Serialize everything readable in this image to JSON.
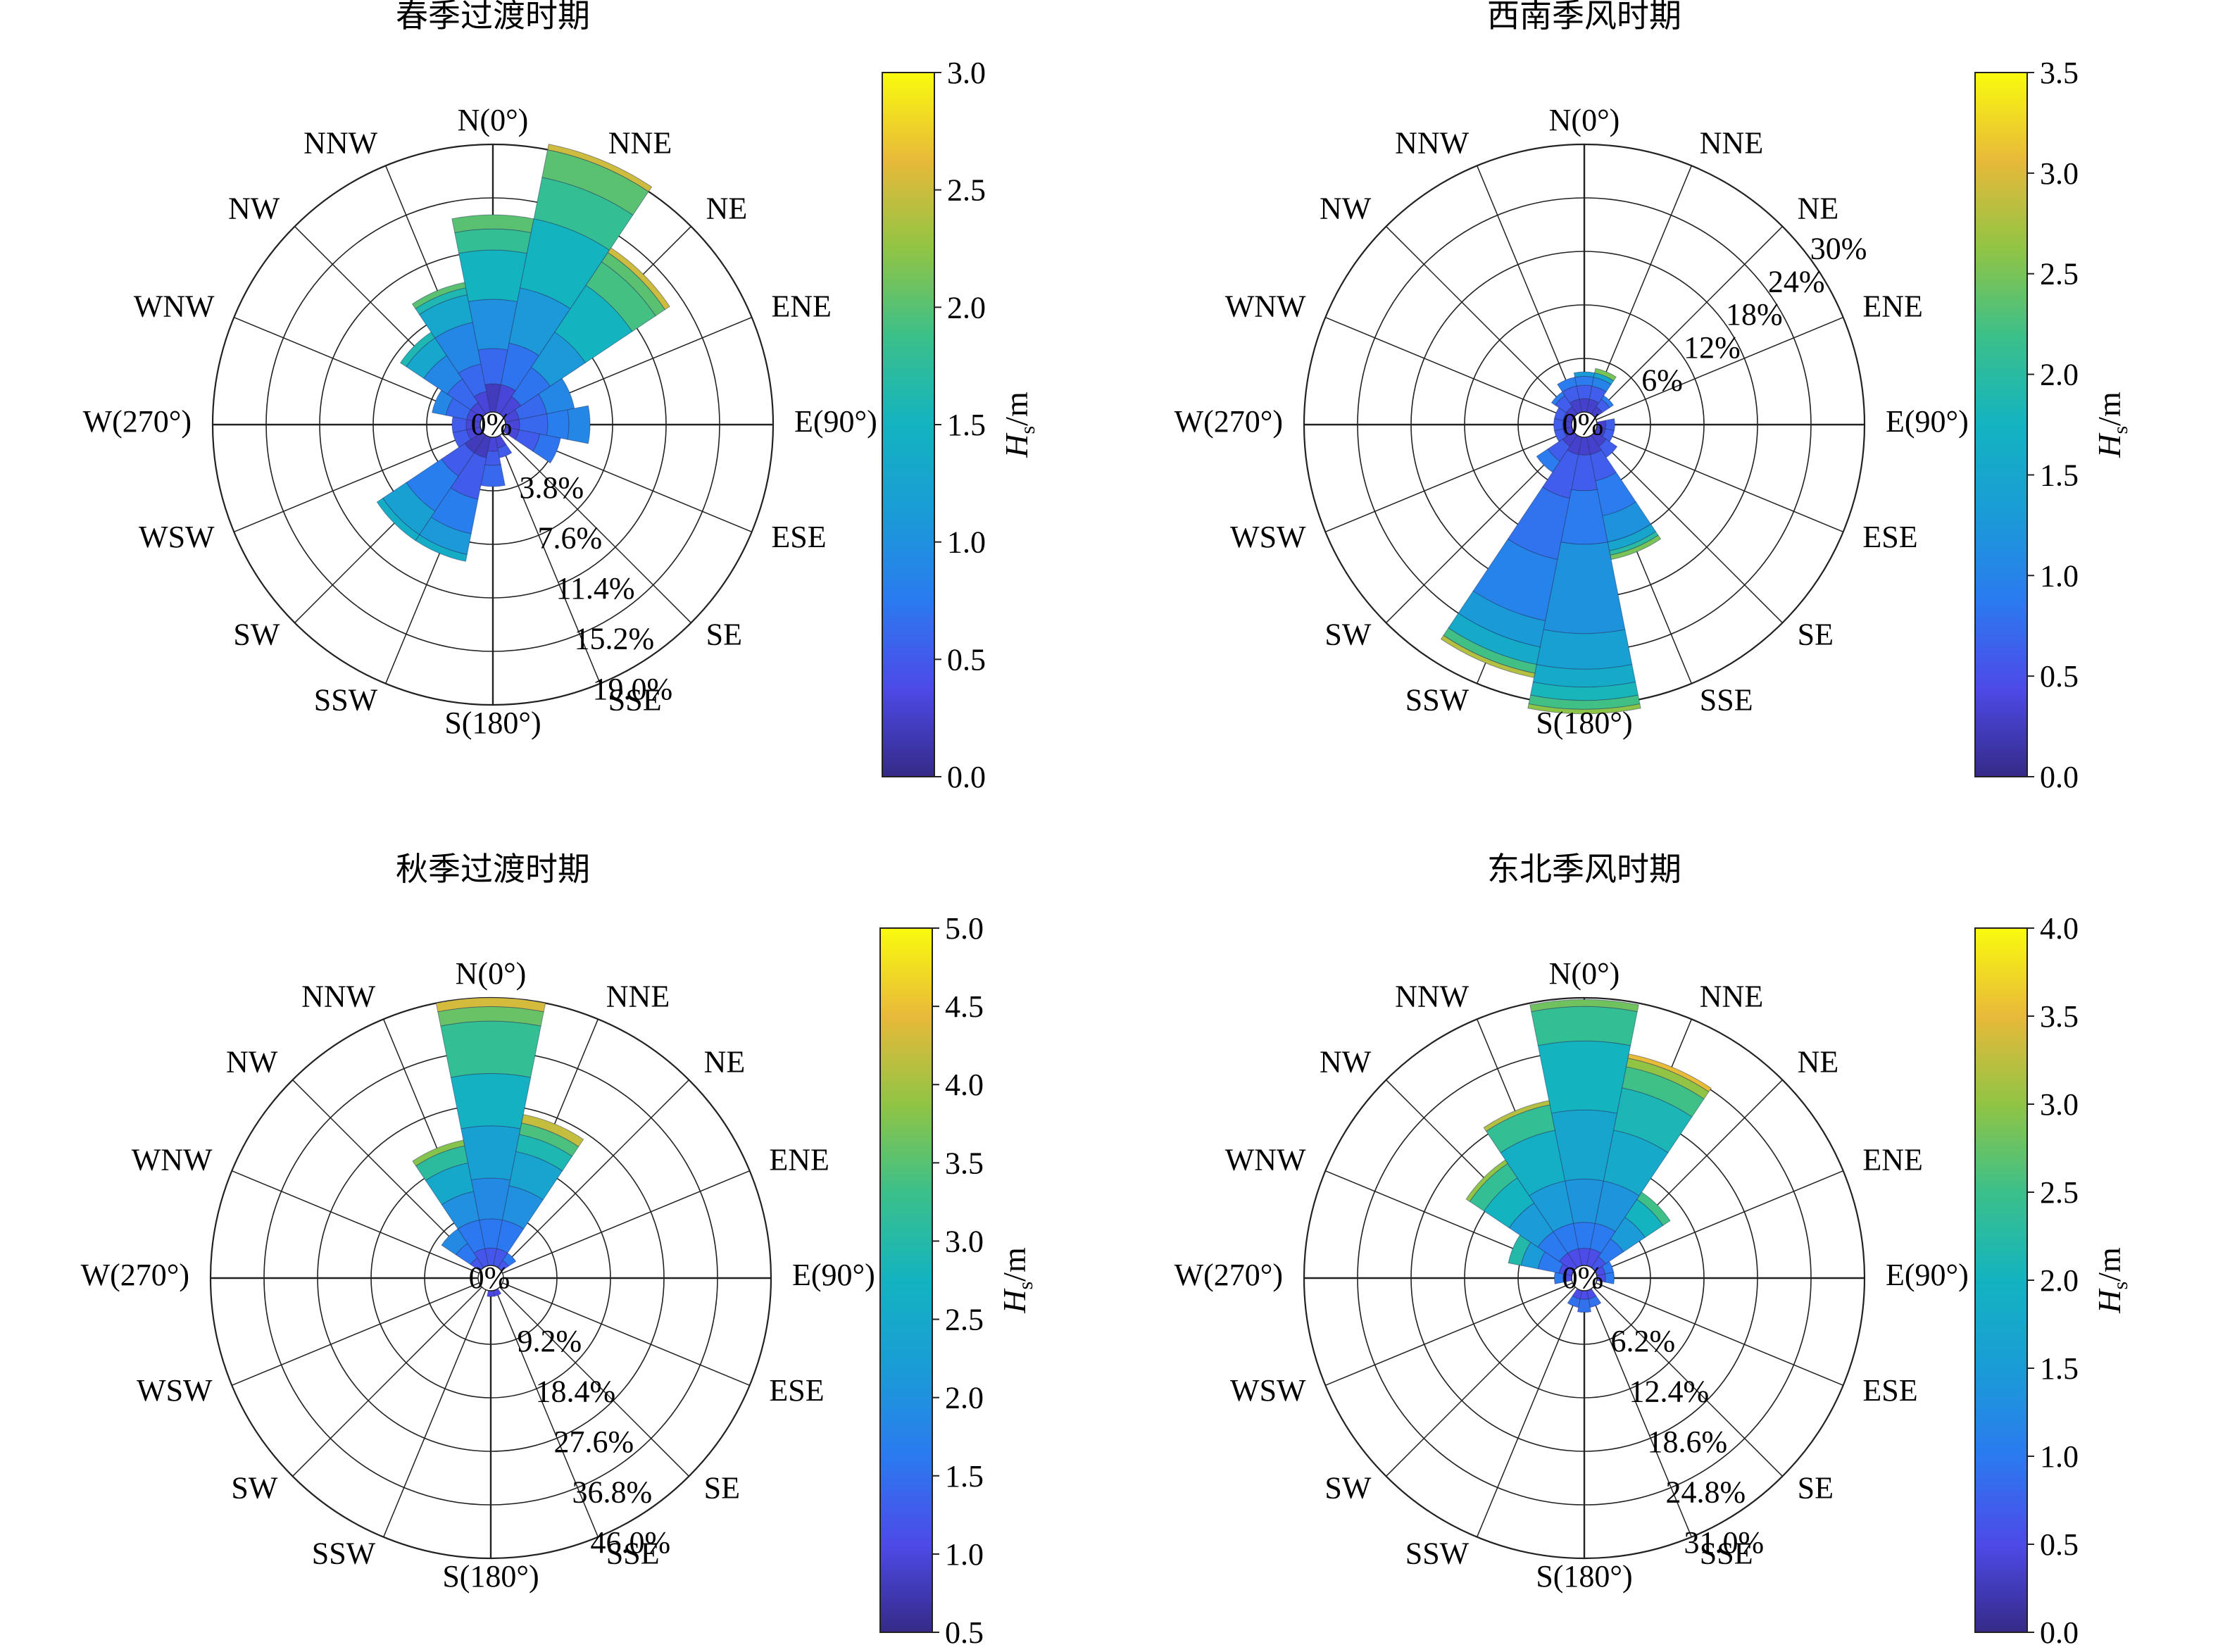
{
  "directions": [
    "N(0°)",
    "NNE",
    "NE",
    "ENE",
    "E(90°)",
    "ESE",
    "SE",
    "SSE",
    "S(180°)",
    "SSW",
    "SW",
    "WSW",
    "W(270°)",
    "WNW",
    "NW",
    "NNW"
  ],
  "colorbar_label": "Hs/m",
  "colorbar_label_main": "H",
  "colorbar_label_sub": "s",
  "colorbar_label_unit": "/m",
  "chart_data": [
    {
      "type": "polar-bar",
      "title": "春季过渡时期",
      "r_max": 19.0,
      "r_ticks": [
        "3.8%",
        "7.6%",
        "11.4%",
        "15.2%",
        "19.0%"
      ],
      "r_tick_values": [
        3.8,
        7.6,
        11.4,
        15.2,
        19.0
      ],
      "center_label": "0%",
      "rlabel_angle_deg": 160,
      "colorbar": {
        "min": 0.0,
        "max": 3.0,
        "ticks": [
          "0.0",
          "0.5",
          "1.0",
          "1.5",
          "2.0",
          "2.5",
          "3.0"
        ]
      },
      "sectors": [
        {
          "direction": "N(0°)",
          "bins": [
            [
              2.0,
              0.2
            ],
            [
              4.5,
              0.6
            ],
            [
              8.0,
              1.0
            ],
            [
              11.5,
              1.5
            ],
            [
              13.0,
              1.8
            ],
            [
              14.0,
              2.0
            ]
          ]
        },
        {
          "direction": "NNE",
          "bins": [
            [
              2.0,
              0.3
            ],
            [
              5.0,
              0.7
            ],
            [
              9.0,
              1.1
            ],
            [
              14.0,
              1.5
            ],
            [
              17.0,
              1.8
            ],
            [
              19.0,
              2.0
            ],
            [
              19.4,
              2.5
            ]
          ]
        },
        {
          "direction": "NE",
          "bins": [
            [
              1.5,
              0.3
            ],
            [
              4.0,
              0.7
            ],
            [
              7.0,
              1.1
            ],
            [
              11.0,
              1.5
            ],
            [
              13.0,
              1.9
            ],
            [
              13.8,
              2.0
            ],
            [
              14.2,
              2.5
            ]
          ]
        },
        {
          "direction": "ENE",
          "bins": [
            [
              1.0,
              0.3
            ],
            [
              3.0,
              0.6
            ],
            [
              5.0,
              0.9
            ]
          ]
        },
        {
          "direction": "E(90°)",
          "bins": [
            [
              1.0,
              0.3
            ],
            [
              3.0,
              0.6
            ],
            [
              4.5,
              0.8
            ],
            [
              6.0,
              0.9
            ]
          ]
        },
        {
          "direction": "ESE",
          "bins": [
            [
              1.0,
              0.3
            ],
            [
              2.5,
              0.5
            ],
            [
              4.0,
              0.7
            ]
          ]
        },
        {
          "direction": "SSE",
          "bins": [
            [
              0.8,
              0.3
            ],
            [
              1.5,
              0.5
            ]
          ]
        },
        {
          "direction": "S(180°)",
          "bins": [
            [
              1.0,
              0.3
            ],
            [
              2.0,
              0.5
            ],
            [
              3.5,
              0.6
            ]
          ]
        },
        {
          "direction": "SSW",
          "bins": [
            [
              1.5,
              0.2
            ],
            [
              4.5,
              0.5
            ],
            [
              7.0,
              0.8
            ],
            [
              8.5,
              1.1
            ],
            [
              9.0,
              1.4
            ]
          ]
        },
        {
          "direction": "SW",
          "bins": [
            [
              1.5,
              0.2
            ],
            [
              3.5,
              0.5
            ],
            [
              6.5,
              0.8
            ],
            [
              8.5,
              1.2
            ],
            [
              9.0,
              1.4
            ]
          ]
        },
        {
          "direction": "WSW",
          "bins": [
            [
              1.0,
              0.3
            ],
            [
              2.0,
              0.5
            ]
          ]
        },
        {
          "direction": "W(270°)",
          "bins": [
            [
              1.0,
              0.3
            ],
            [
              2.0,
              0.5
            ]
          ]
        },
        {
          "direction": "WNW",
          "bins": [
            [
              1.0,
              0.3
            ],
            [
              2.5,
              0.6
            ],
            [
              3.5,
              0.9
            ]
          ]
        },
        {
          "direction": "NW",
          "bins": [
            [
              1.0,
              0.3
            ],
            [
              3.0,
              0.6
            ],
            [
              5.0,
              0.9
            ],
            [
              6.5,
              1.3
            ],
            [
              7.0,
              1.6
            ]
          ]
        },
        {
          "direction": "NNW",
          "bins": [
            [
              1.5,
              0.3
            ],
            [
              3.5,
              0.6
            ],
            [
              6.5,
              0.9
            ],
            [
              8.5,
              1.3
            ],
            [
              9.0,
              1.6
            ],
            [
              9.4,
              2.0
            ]
          ]
        }
      ]
    },
    {
      "type": "polar-bar",
      "title": "西南季风时期",
      "r_max": 30.0,
      "r_ticks": [
        "6%",
        "12%",
        "18%",
        "24%",
        "30%"
      ],
      "r_tick_values": [
        6,
        12,
        18,
        24,
        30
      ],
      "center_label": "0%",
      "rlabel_angle_deg": 52,
      "colorbar": {
        "min": 0.0,
        "max": 3.5,
        "ticks": [
          "0.0",
          "0.5",
          "1.0",
          "1.5",
          "2.0",
          "2.5",
          "3.0",
          "3.5"
        ]
      },
      "sectors": [
        {
          "direction": "N(0°)",
          "bins": [
            [
              1.5,
              0.3
            ],
            [
              3.0,
              0.6
            ],
            [
              4.0,
              0.9
            ],
            [
              4.5,
              1.3
            ]
          ]
        },
        {
          "direction": "NNE",
          "bins": [
            [
              1.5,
              0.3
            ],
            [
              3.0,
              0.6
            ],
            [
              4.0,
              1.0
            ],
            [
              4.5,
              1.5
            ],
            [
              5.0,
              2.5
            ]
          ]
        },
        {
          "direction": "NE",
          "bins": [
            [
              1.0,
              0.3
            ],
            [
              2.0,
              0.6
            ],
            [
              2.5,
              0.9
            ]
          ]
        },
        {
          "direction": "E(90°)",
          "bins": [
            [
              1.0,
              0.3
            ],
            [
              2.0,
              0.6
            ]
          ]
        },
        {
          "direction": "ESE",
          "bins": [
            [
              1.0,
              0.3
            ],
            [
              2.0,
              0.6
            ]
          ]
        },
        {
          "direction": "SE",
          "bins": [
            [
              1.5,
              0.3
            ],
            [
              3.0,
              0.6
            ]
          ]
        },
        {
          "direction": "SSE",
          "bins": [
            [
              2.0,
              0.3
            ],
            [
              5.0,
              0.6
            ],
            [
              9.0,
              0.9
            ],
            [
              12.0,
              1.2
            ],
            [
              13.0,
              1.5
            ],
            [
              13.5,
              2.0
            ],
            [
              14.0,
              2.5
            ]
          ]
        },
        {
          "direction": "S(180°)",
          "bins": [
            [
              2.0,
              0.3
            ],
            [
              6.0,
              0.6
            ],
            [
              12.0,
              0.9
            ],
            [
              22.0,
              1.2
            ],
            [
              26.0,
              1.4
            ],
            [
              28.0,
              1.6
            ],
            [
              29.5,
              1.8
            ],
            [
              30.5,
              2.2
            ],
            [
              31.0,
              2.6
            ]
          ]
        },
        {
          "direction": "SSW",
          "bins": [
            [
              2.0,
              0.3
            ],
            [
              7.0,
              0.6
            ],
            [
              14.0,
              0.8
            ],
            [
              21.0,
              1.0
            ],
            [
              24.0,
              1.3
            ],
            [
              26.0,
              1.6
            ],
            [
              27.0,
              2.2
            ],
            [
              27.5,
              2.8
            ]
          ]
        },
        {
          "direction": "SW",
          "bins": [
            [
              1.5,
              0.3
            ],
            [
              3.5,
              0.6
            ],
            [
              5.0,
              0.9
            ]
          ]
        },
        {
          "direction": "WSW",
          "bins": [
            [
              1.0,
              0.3
            ],
            [
              2.0,
              0.6
            ]
          ]
        },
        {
          "direction": "W(270°)",
          "bins": [
            [
              1.0,
              0.3
            ],
            [
              2.0,
              0.6
            ]
          ]
        },
        {
          "direction": "WNW",
          "bins": [
            [
              1.0,
              0.3
            ],
            [
              2.0,
              0.6
            ]
          ]
        },
        {
          "direction": "NW",
          "bins": [
            [
              1.0,
              0.3
            ],
            [
              2.5,
              0.6
            ],
            [
              3.0,
              0.9
            ]
          ]
        },
        {
          "direction": "NNW",
          "bins": [
            [
              1.5,
              0.3
            ],
            [
              3.0,
              0.6
            ],
            [
              4.0,
              0.9
            ]
          ]
        }
      ]
    },
    {
      "type": "polar-bar",
      "title": "秋季过渡时期",
      "r_max": 46.0,
      "r_ticks": [
        "9.2%",
        "18.4%",
        "27.6%",
        "36.8%",
        "46.0%"
      ],
      "r_tick_values": [
        9.2,
        18.4,
        27.6,
        36.8,
        46.0
      ],
      "center_label": "0%",
      "rlabel_angle_deg": 160,
      "colorbar": {
        "min": 0.5,
        "max": 5.0,
        "ticks": [
          "0.5",
          "1.0",
          "1.5",
          "2.0",
          "2.5",
          "3.0",
          "3.5",
          "4.0",
          "4.5",
          "5.0"
        ]
      },
      "sectors": [
        {
          "direction": "N(0°)",
          "bins": [
            [
              3.0,
              1.2
            ],
            [
              8.0,
              1.6
            ],
            [
              15.0,
              1.9
            ],
            [
              24.0,
              2.3
            ],
            [
              33.0,
              2.7
            ],
            [
              42.0,
              3.2
            ],
            [
              44.5,
              3.6
            ],
            [
              46.0,
              4.3
            ]
          ]
        },
        {
          "direction": "NNE",
          "bins": [
            [
              3.0,
              1.2
            ],
            [
              8.0,
              1.6
            ],
            [
              14.0,
              2.0
            ],
            [
              20.0,
              2.4
            ],
            [
              23.0,
              2.9
            ],
            [
              25.0,
              3.4
            ],
            [
              26.5,
              4.2
            ]
          ]
        },
        {
          "direction": "NE",
          "bins": [
            [
              1.5,
              1.2
            ],
            [
              3.0,
              1.6
            ]
          ]
        },
        {
          "direction": "SSE",
          "bins": [
            [
              1.0,
              1.0
            ]
          ]
        },
        {
          "direction": "S(180°)",
          "bins": [
            [
              1.0,
              1.0
            ]
          ]
        },
        {
          "direction": "NW",
          "bins": [
            [
              2.0,
              1.2
            ],
            [
              5.0,
              1.6
            ],
            [
              8.0,
              1.9
            ]
          ]
        },
        {
          "direction": "NNW",
          "bins": [
            [
              3.0,
              1.2
            ],
            [
              8.0,
              1.6
            ],
            [
              13.0,
              2.0
            ],
            [
              18.0,
              2.5
            ],
            [
              21.0,
              3.1
            ],
            [
              22.0,
              3.8
            ]
          ]
        }
      ]
    },
    {
      "type": "polar-bar",
      "title": "东北季风时期",
      "r_max": 31.0,
      "r_ticks": [
        "6.2%",
        "12.4%",
        "18.6%",
        "24.8%",
        "31.0%"
      ],
      "r_tick_values": [
        6.2,
        12.4,
        18.6,
        24.8,
        31.0
      ],
      "center_label": "0%",
      "rlabel_angle_deg": 160,
      "colorbar": {
        "min": 0.0,
        "max": 4.0,
        "ticks": [
          "0.0",
          "0.5",
          "1.0",
          "1.5",
          "2.0",
          "2.5",
          "3.0",
          "3.5",
          "4.0"
        ]
      },
      "sectors": [
        {
          "direction": "N(0°)",
          "bins": [
            [
              2.0,
              0.5
            ],
            [
              5.0,
              1.0
            ],
            [
              10.0,
              1.4
            ],
            [
              18.0,
              1.7
            ],
            [
              26.0,
              2.0
            ],
            [
              30.0,
              2.4
            ],
            [
              30.8,
              2.8
            ]
          ]
        },
        {
          "direction": "NNE",
          "bins": [
            [
              2.0,
              0.5
            ],
            [
              5.0,
              1.0
            ],
            [
              10.0,
              1.4
            ],
            [
              16.0,
              1.8
            ],
            [
              21.0,
              2.1
            ],
            [
              23.5,
              2.5
            ],
            [
              24.5,
              3.0
            ],
            [
              25.0,
              3.5
            ]
          ]
        },
        {
          "direction": "NE",
          "bins": [
            [
              1.5,
              0.6
            ],
            [
              4.0,
              1.0
            ],
            [
              7.0,
              1.5
            ],
            [
              9.5,
              2.0
            ],
            [
              10.5,
              2.5
            ]
          ]
        },
        {
          "direction": "ENE",
          "bins": [
            [
              1.0,
              0.5
            ],
            [
              2.0,
              1.0
            ]
          ]
        },
        {
          "direction": "E(90°)",
          "bins": [
            [
              1.0,
              0.5
            ],
            [
              2.0,
              1.0
            ]
          ]
        },
        {
          "direction": "SSE",
          "bins": [
            [
              1.0,
              0.5
            ],
            [
              2.0,
              0.9
            ]
          ]
        },
        {
          "direction": "S(180°)",
          "bins": [
            [
              1.0,
              0.5
            ],
            [
              2.5,
              0.9
            ]
          ]
        },
        {
          "direction": "SSW",
          "bins": [
            [
              1.0,
              0.5
            ],
            [
              2.0,
              0.9
            ]
          ]
        },
        {
          "direction": "W(270°)",
          "bins": [
            [
              1.0,
              0.5
            ],
            [
              2.0,
              1.0
            ]
          ]
        },
        {
          "direction": "WNW",
          "bins": [
            [
              1.5,
              0.5
            ],
            [
              4.0,
              1.0
            ],
            [
              6.0,
              1.5
            ],
            [
              7.5,
              2.2
            ]
          ]
        },
        {
          "direction": "NW",
          "bins": [
            [
              2.0,
              0.5
            ],
            [
              5.0,
              1.0
            ],
            [
              9.0,
              1.5
            ],
            [
              12.5,
              2.0
            ],
            [
              14.5,
              2.4
            ],
            [
              15.0,
              3.0
            ]
          ]
        },
        {
          "direction": "NNW",
          "bins": [
            [
              2.0,
              0.5
            ],
            [
              5.0,
              1.0
            ],
            [
              10.0,
              1.5
            ],
            [
              16.0,
              1.9
            ],
            [
              19.0,
              2.4
            ],
            [
              19.5,
              3.2
            ]
          ]
        }
      ]
    }
  ]
}
